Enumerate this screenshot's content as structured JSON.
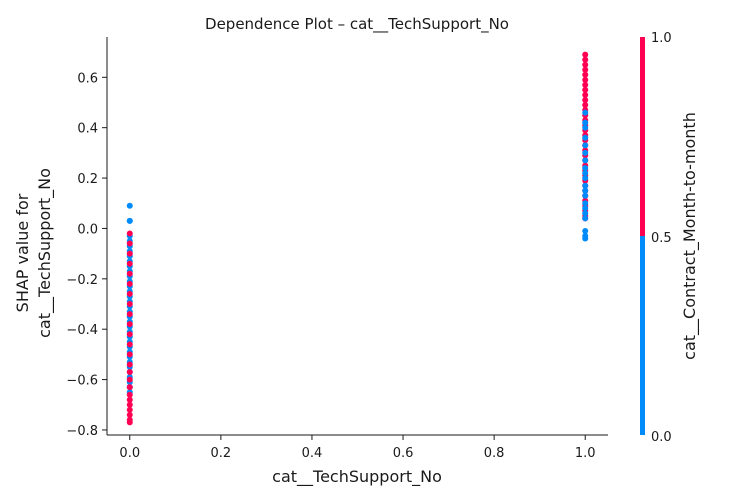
{
  "chart_data": {
    "type": "scatter",
    "title": "Dependence Plot – cat__TechSupport_No",
    "xlabel": "cat__TechSupport_No",
    "ylabel_lines": [
      "SHAP value for",
      "cat__TechSupport_No"
    ],
    "xlim": [
      -0.05,
      1.05
    ],
    "ylim": [
      -0.82,
      0.76
    ],
    "xticks": [
      0.0,
      0.2,
      0.4,
      0.6,
      0.8,
      1.0
    ],
    "xtick_labels": [
      "0.0",
      "0.2",
      "0.4",
      "0.6",
      "0.8",
      "1.0"
    ],
    "yticks": [
      -0.8,
      -0.6,
      -0.4,
      -0.2,
      0.0,
      0.2,
      0.4,
      0.6
    ],
    "ytick_labels": [
      "−0.8",
      "−0.6",
      "−0.4",
      "−0.2",
      "0.0",
      "0.2",
      "0.4",
      "0.6"
    ],
    "grid": false,
    "color_feature": {
      "label": "cat__Contract_Month-to-month",
      "ticks": [
        "0.0",
        "0.5",
        "1.0"
      ],
      "low_color": "#008bfb",
      "high_color": "#ff0052"
    },
    "series": [
      {
        "x": 0,
        "color_value": 0,
        "y": [
          0.09,
          0.03,
          0.03,
          -0.03,
          -0.05,
          -0.07,
          -0.09,
          -0.11,
          -0.13,
          -0.15,
          -0.17,
          -0.19,
          -0.21,
          -0.23,
          -0.25,
          -0.27,
          -0.29,
          -0.31,
          -0.33,
          -0.35,
          -0.37,
          -0.39,
          -0.41,
          -0.43,
          -0.45,
          -0.47,
          -0.49,
          -0.51,
          -0.53,
          -0.55,
          -0.57,
          -0.59,
          -0.61,
          -0.63,
          -0.65
        ]
      },
      {
        "x": 0,
        "color_value": 1,
        "y": [
          -0.02,
          -0.06,
          -0.1,
          -0.14,
          -0.18,
          -0.22,
          -0.26,
          -0.3,
          -0.34,
          -0.38,
          -0.42,
          -0.46,
          -0.5,
          -0.54,
          -0.57,
          -0.6,
          -0.63,
          -0.66,
          -0.68,
          -0.7,
          -0.72,
          -0.74,
          -0.76,
          -0.77
        ]
      },
      {
        "x": 1,
        "color_value": 1,
        "y": [
          0.69,
          0.67,
          0.65,
          0.63,
          0.61,
          0.59,
          0.57,
          0.55,
          0.53,
          0.51,
          0.49,
          0.47,
          0.45,
          0.43,
          0.41,
          0.39,
          0.37,
          0.35,
          0.33,
          0.31,
          0.29,
          0.27,
          0.25,
          0.23,
          0.21,
          0.19,
          0.17,
          0.15,
          0.13,
          0.11,
          0.09,
          0.07,
          0.05,
          0.04
        ]
      },
      {
        "x": 1,
        "color_value": 0,
        "y": [
          0.46,
          0.42,
          0.4,
          0.36,
          0.33,
          0.3,
          0.27,
          0.24,
          0.22,
          0.2,
          0.17,
          0.15,
          0.13,
          0.1,
          0.08,
          0.06,
          0.04,
          -0.01,
          -0.03,
          -0.04
        ]
      }
    ]
  }
}
